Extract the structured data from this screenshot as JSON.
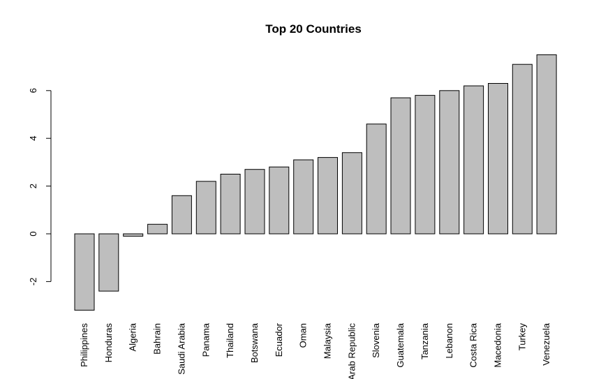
{
  "chart_data": {
    "type": "bar",
    "title": "Top 20 Countries",
    "xlabel": "",
    "ylabel": "",
    "ylim": [
      -3.3,
      7.6
    ],
    "yticks": [
      -2,
      0,
      2,
      4,
      6
    ],
    "ytick_labels": [
      "-2",
      "0",
      "2",
      "4",
      "6"
    ],
    "categories": [
      "Philippines",
      "Honduras",
      "Algeria",
      "Bahrain",
      "Saudi Arabia",
      "Panama",
      "Thailand",
      "Botswana",
      "Ecuador",
      "Oman",
      "Malaysia",
      "Arab Republic",
      "Slovenia",
      "Guatemala",
      "Tanzania",
      "Lebanon",
      "Costa Rica",
      "Macedonia",
      "Turkey",
      "Venezuela"
    ],
    "values": [
      -3.2,
      -2.4,
      -0.1,
      0.4,
      1.6,
      2.2,
      2.5,
      2.7,
      2.8,
      3.1,
      3.2,
      3.4,
      4.6,
      5.7,
      5.8,
      6.0,
      6.2,
      6.3,
      7.1,
      7.5
    ],
    "bar_color": "#bebebe",
    "grid": false,
    "legend": "none"
  }
}
